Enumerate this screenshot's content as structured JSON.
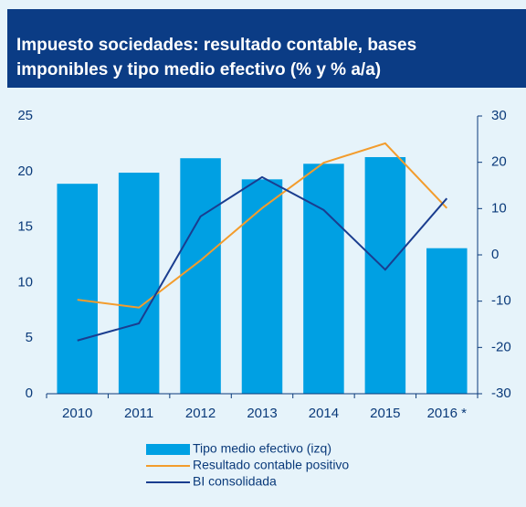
{
  "chart_data": {
    "type": "bar",
    "title": [
      "Impuesto sociedades: resultado contable, bases",
      "imponibles y tipo medio efectivo (% y % a/a)"
    ],
    "categories": [
      "2010",
      "2011",
      "2012",
      "2013",
      "2014",
      "2015",
      "2016 *"
    ],
    "series": [
      {
        "name": "Tipo medio efectivo (izq)",
        "type": "bar",
        "axis": "y",
        "color": "#00a0e3",
        "values": [
          18.9,
          19.9,
          21.2,
          19.3,
          20.7,
          21.3,
          13.1
        ]
      },
      {
        "name": "Resultado contable positivo",
        "type": "line",
        "axis": "y2",
        "color": "#f39c2c",
        "values": [
          -9.7,
          -11.4,
          -1.2,
          10.1,
          19.9,
          24.1,
          10.1
        ]
      },
      {
        "name": "BI consolidada",
        "type": "line",
        "axis": "y2",
        "color": "#1a3d8f",
        "values": [
          -18.5,
          -14.8,
          8.3,
          16.8,
          9.7,
          -3.2,
          12.2
        ]
      }
    ],
    "ylim": [
      0,
      25
    ],
    "yticks": [
      0,
      5,
      10,
      15,
      20,
      25
    ],
    "y2lim": [
      -30,
      30
    ],
    "y2ticks": [
      -30,
      -20,
      -10,
      0,
      10,
      20,
      30
    ]
  }
}
